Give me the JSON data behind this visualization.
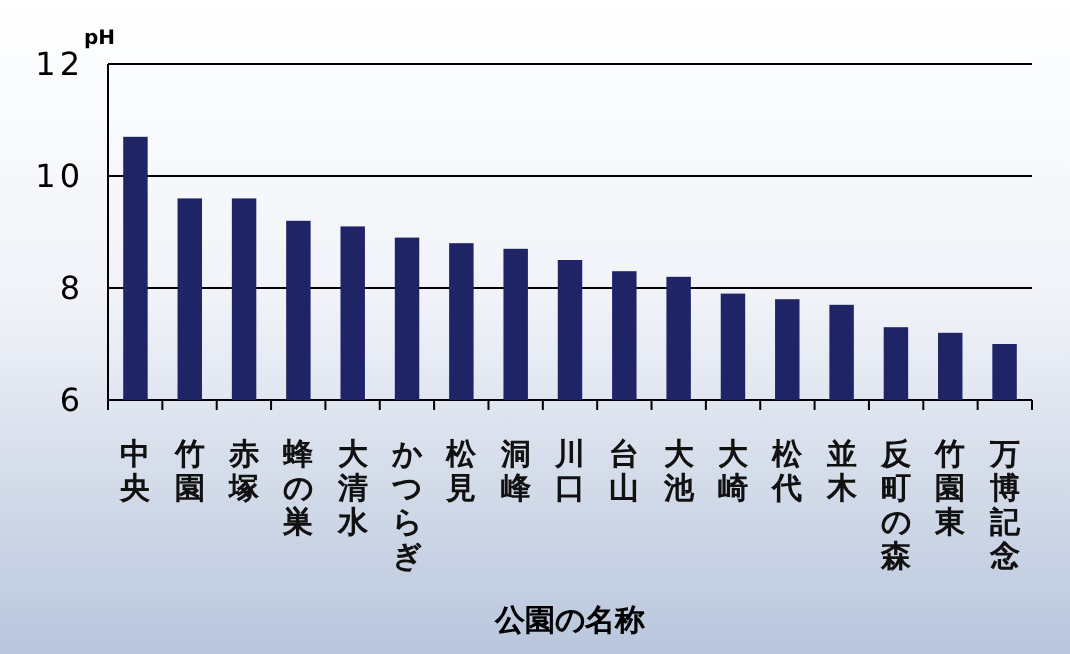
{
  "chart_data": {
    "type": "bar",
    "ylabel": "pH",
    "xlabel": "公園の名称",
    "categories": [
      "中央",
      "竹園",
      "赤塚",
      "蜂の巣",
      "大清水",
      "かつらぎ",
      "松見",
      "洞峰",
      "川口",
      "台山",
      "大池",
      "大崎",
      "松代",
      "並木",
      "反町の森",
      "竹園東",
      "万博記念"
    ],
    "values": [
      10.7,
      9.6,
      9.6,
      9.2,
      9.1,
      8.9,
      8.8,
      8.7,
      8.5,
      8.3,
      8.2,
      7.9,
      7.8,
      7.7,
      7.3,
      7.2,
      7.0
    ],
    "color": "#1f2466",
    "ylim": [
      6,
      12
    ],
    "yticks": [
      6,
      8,
      10,
      12
    ],
    "grid": "y"
  }
}
